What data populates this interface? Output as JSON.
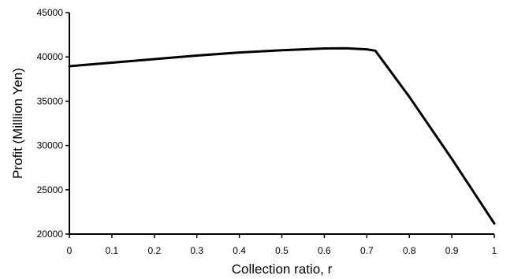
{
  "chart_data": {
    "type": "line",
    "title": "",
    "xlabel": "Collection ratio, r",
    "ylabel": "Profit (Milllion Yen)",
    "xlim": [
      0,
      1
    ],
    "ylim": [
      20000,
      45000
    ],
    "grid": false,
    "legend": "none",
    "line_color": "#000000",
    "x_ticks": [
      0,
      0.1,
      0.2,
      0.3,
      0.4,
      0.5,
      0.6,
      0.7,
      0.8,
      0.9,
      1
    ],
    "x_tick_labels": [
      "0",
      "0.1",
      "0.2",
      "0.3",
      "0.4",
      "0.5",
      "0.6",
      "0.7",
      "0.8",
      "0.9",
      "1"
    ],
    "y_ticks": [
      20000,
      25000,
      30000,
      35000,
      40000,
      45000
    ],
    "y_tick_labels": [
      "20000",
      "25000",
      "30000",
      "35000",
      "40000",
      "45000"
    ],
    "series": [
      {
        "x": [
          0,
          0.1,
          0.2,
          0.3,
          0.4,
          0.5,
          0.6,
          0.65,
          0.7,
          0.72,
          0.8,
          0.9,
          1.0
        ],
        "y": [
          38950,
          39350,
          39750,
          40150,
          40500,
          40750,
          40950,
          40980,
          40850,
          40700,
          35500,
          28500,
          21200
        ]
      }
    ]
  }
}
